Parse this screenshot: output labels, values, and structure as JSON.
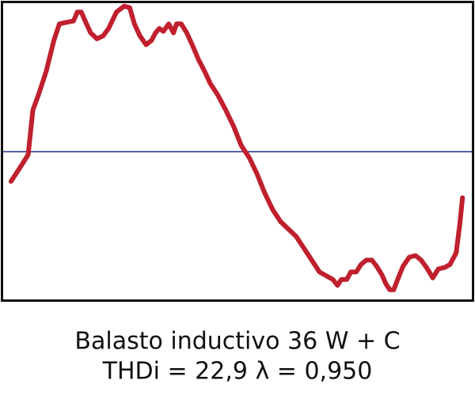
{
  "chart_data": {
    "type": "line",
    "title": "Balasto inductivo 36 W + C",
    "subtitle": "THDi = 22,9 λ = 0,950",
    "xlim": [
      0,
      600
    ],
    "ylim": [
      -1,
      1
    ],
    "reference_line": {
      "value": 0,
      "color": "#1f2f8a"
    },
    "series": [
      {
        "color": "#c0202e",
        "x": [
          10,
          20,
          32,
          38,
          45,
          55,
          65,
          72,
          80,
          90,
          95,
          100,
          105,
          112,
          120,
          128,
          135,
          145,
          155,
          162,
          168,
          175,
          183,
          190,
          195,
          200,
          205,
          212,
          218,
          222,
          228,
          235,
          242,
          250,
          258,
          265,
          275,
          285,
          295,
          305,
          315,
          325,
          335,
          345,
          355,
          365,
          375,
          385,
          395,
          405,
          415,
          422,
          428,
          433,
          440,
          445,
          452,
          458,
          465,
          472,
          478,
          485,
          490,
          495,
          500,
          505,
          512,
          520,
          528,
          535,
          542,
          550,
          557,
          565,
          572,
          580,
          585,
          588
        ],
        "values": [
          -0.2,
          -0.12,
          -0.02,
          0.28,
          0.38,
          0.54,
          0.75,
          0.86,
          0.87,
          0.88,
          0.94,
          0.94,
          0.88,
          0.8,
          0.76,
          0.78,
          0.83,
          0.94,
          0.98,
          0.97,
          0.86,
          0.78,
          0.72,
          0.75,
          0.8,
          0.83,
          0.81,
          0.86,
          0.8,
          0.86,
          0.86,
          0.8,
          0.72,
          0.62,
          0.54,
          0.46,
          0.38,
          0.28,
          0.17,
          0.04,
          -0.04,
          -0.15,
          -0.28,
          -0.39,
          -0.47,
          -0.52,
          -0.57,
          -0.65,
          -0.73,
          -0.81,
          -0.84,
          -0.86,
          -0.9,
          -0.86,
          -0.86,
          -0.81,
          -0.81,
          -0.76,
          -0.73,
          -0.73,
          -0.77,
          -0.83,
          -0.89,
          -0.93,
          -0.93,
          -0.86,
          -0.77,
          -0.71,
          -0.7,
          -0.73,
          -0.78,
          -0.85,
          -0.79,
          -0.78,
          -0.76,
          -0.68,
          -0.47,
          -0.31
        ]
      }
    ]
  }
}
